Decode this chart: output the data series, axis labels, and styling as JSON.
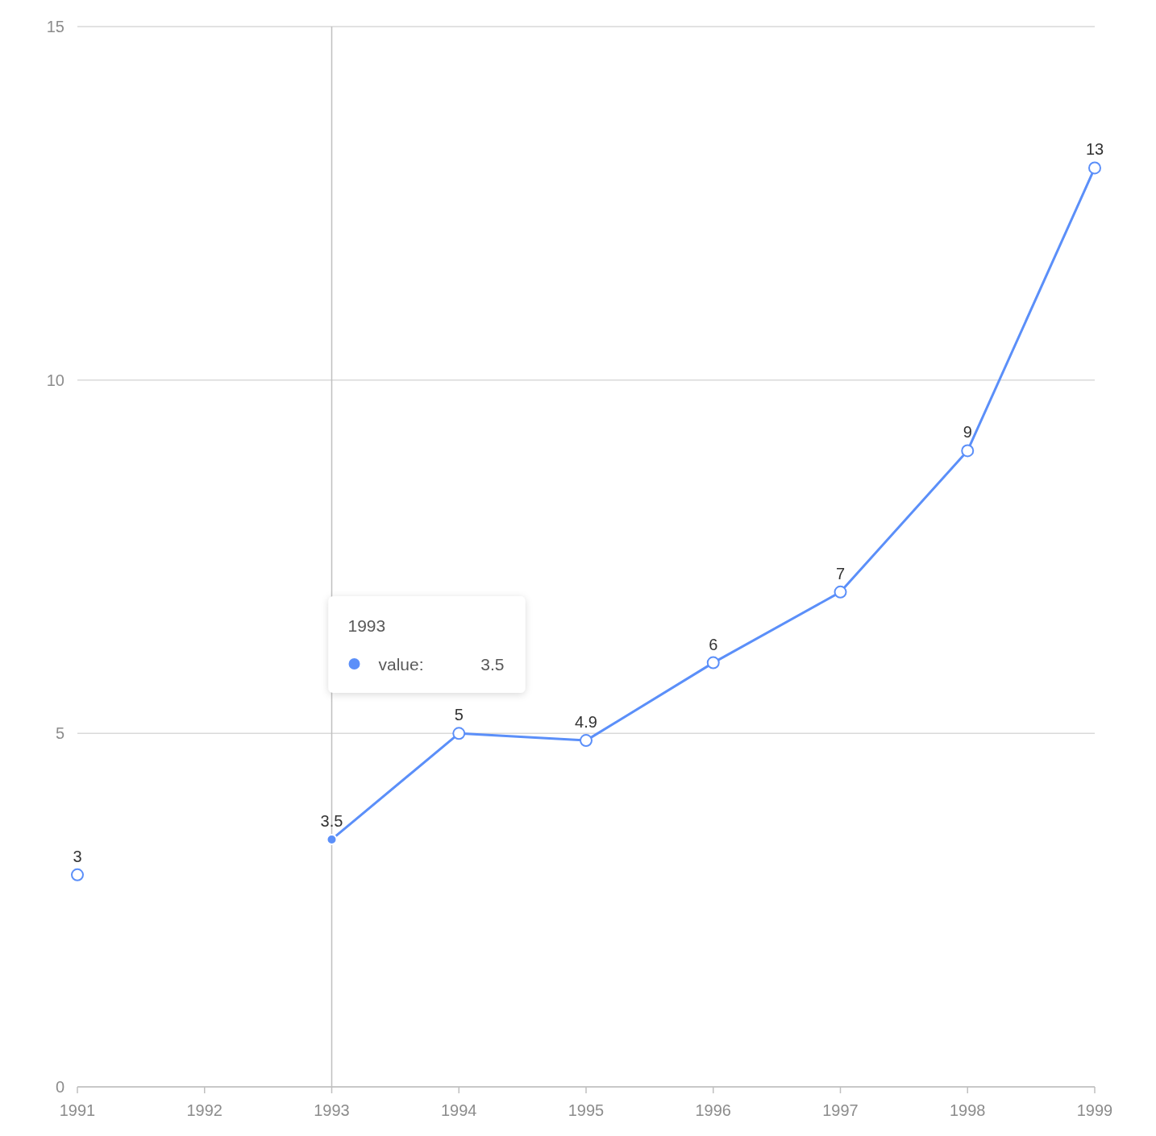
{
  "chart_data": {
    "type": "line",
    "categories": [
      "1991",
      "1992",
      "1993",
      "1994",
      "1995",
      "1996",
      "1997",
      "1998",
      "1999"
    ],
    "series": [
      {
        "name": "value:",
        "color": "#5b8ff9",
        "values": [
          3,
          null,
          3.5,
          5,
          4.9,
          6,
          7,
          9,
          13
        ]
      }
    ],
    "ylim": [
      0,
      15
    ],
    "yticks": [
      0,
      5,
      10,
      15
    ],
    "grid": "y",
    "marker": "circle",
    "line_style": "solid",
    "data_labels": true,
    "ref_lines": [
      {
        "axis": "x",
        "value": "1993"
      }
    ],
    "annotations": [
      "1993",
      "3.5"
    ]
  }
}
